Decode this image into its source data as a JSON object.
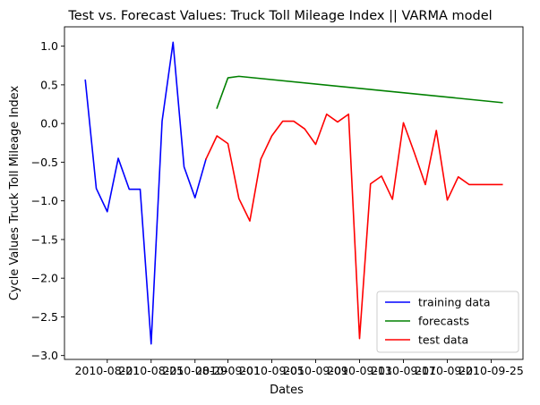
{
  "chart_data": {
    "type": "line",
    "title": "Test vs. Forecast Values: Truck Toll Mileage Index || VARMA model",
    "xlabel": "Dates",
    "ylabel": "Cycle Values Truck Toll Mileage Index",
    "ylim": [
      -3.05,
      1.25
    ],
    "yticks": [
      "−3.0",
      "−2.5",
      "−2.0",
      "−1.5",
      "−1.0",
      "−0.5",
      "0.0",
      "0.5",
      "1.0"
    ],
    "ytick_values": [
      -3.0,
      -2.5,
      -2.0,
      -1.5,
      -1.0,
      -0.5,
      0.0,
      0.5,
      1.0
    ],
    "xticks": [
      "2010-08-21",
      "2010-08-25",
      "2010-08-29",
      "2010-09-01",
      "2010-09-05",
      "2010-09-09",
      "2010-09-13",
      "2010-09-17",
      "2010-09-21",
      "2010-09-25"
    ],
    "legend_position": "lower-right",
    "grid": false,
    "series": [
      {
        "name": "training data",
        "color": "#0000ff",
        "x": [
          "2010-08-19",
          "2010-08-20",
          "2010-08-21",
          "2010-08-22",
          "2010-08-23",
          "2010-08-24",
          "2010-08-25",
          "2010-08-26",
          "2010-08-27",
          "2010-08-28",
          "2010-08-29",
          "2010-08-30"
        ],
        "y": [
          0.56,
          -0.84,
          -1.14,
          -0.45,
          -0.85,
          -0.85,
          -2.85,
          0.03,
          1.05,
          -0.56,
          -0.96,
          -0.46
        ]
      },
      {
        "name": "forecasts",
        "color": "#008000",
        "x": [
          "2010-08-31",
          "2010-09-01",
          "2010-09-02",
          "2010-09-26"
        ],
        "y": [
          0.2,
          0.59,
          0.61,
          0.27
        ]
      },
      {
        "name": "test data",
        "color": "#ff0000",
        "x": [
          "2010-08-30",
          "2010-08-31",
          "2010-09-01",
          "2010-09-02",
          "2010-09-03",
          "2010-09-04",
          "2010-09-05",
          "2010-09-06",
          "2010-09-07",
          "2010-09-08",
          "2010-09-09",
          "2010-09-10",
          "2010-09-11",
          "2010-09-12",
          "2010-09-13",
          "2010-09-14",
          "2010-09-15",
          "2010-09-16",
          "2010-09-17",
          "2010-09-18",
          "2010-09-19",
          "2010-09-20",
          "2010-09-21",
          "2010-09-22",
          "2010-09-23",
          "2010-09-24",
          "2010-09-25",
          "2010-09-26"
        ],
        "y": [
          -0.46,
          -0.16,
          -0.26,
          -0.97,
          -1.26,
          -0.46,
          -0.16,
          0.03,
          0.03,
          -0.07,
          -0.27,
          0.12,
          0.02,
          0.12,
          -2.78,
          -0.78,
          -0.68,
          -0.98,
          0.01,
          -0.38,
          -0.79,
          -0.09,
          -0.99,
          -0.69,
          -0.79,
          -0.79,
          -0.79,
          -0.79
        ]
      }
    ]
  }
}
